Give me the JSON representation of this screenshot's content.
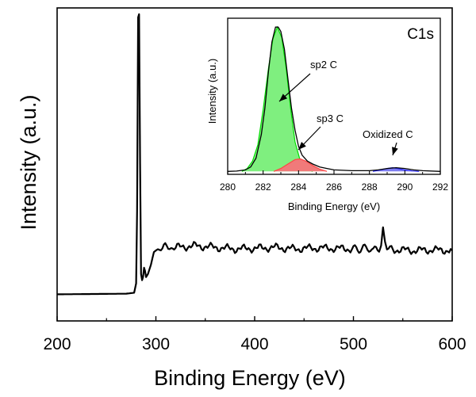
{
  "chart_data": [
    {
      "type": "line",
      "xlabel": "Binding Energy (eV)",
      "ylabel": "Intensity (a.u.)",
      "xlim": [
        200,
        600
      ],
      "xticks": [
        200,
        300,
        400,
        500,
        600
      ],
      "yticks_shown": false,
      "ylim": [
        0,
        1
      ],
      "series": [
        {
          "color": "#000000",
          "x": [
            200,
            270,
            278,
            280,
            281,
            282,
            283,
            284,
            285,
            286,
            287,
            288,
            289,
            290,
            292,
            295,
            298,
            300,
            302,
            305,
            320,
            340,
            360,
            380,
            400,
            420,
            440,
            460,
            480,
            500,
            510,
            520,
            526,
            528,
            530,
            532,
            534,
            540,
            560,
            580,
            600
          ],
          "y": [
            0.085,
            0.087,
            0.09,
            0.12,
            0.35,
            0.97,
            0.98,
            0.5,
            0.15,
            0.13,
            0.14,
            0.17,
            0.16,
            0.14,
            0.15,
            0.18,
            0.22,
            0.225,
            0.23,
            0.235,
            0.235,
            0.24,
            0.235,
            0.23,
            0.232,
            0.235,
            0.23,
            0.233,
            0.232,
            0.23,
            0.232,
            0.228,
            0.235,
            0.25,
            0.3,
            0.25,
            0.23,
            0.228,
            0.225,
            0.227,
            0.225
          ]
        }
      ]
    },
    {
      "type": "area",
      "title": "C1s",
      "xlabel": "Binding Energy (eV)",
      "ylabel": "Intensity (a.u.)",
      "xlim": [
        280,
        292
      ],
      "xticks": [
        280,
        282,
        284,
        286,
        288,
        290,
        292
      ],
      "ylim": [
        0,
        1.06
      ],
      "baseline": 0.02,
      "envelope": {
        "color": "#000000",
        "x": [
          280,
          280.5,
          281,
          281.3,
          281.6,
          281.9,
          282.1,
          282.3,
          282.5,
          282.7,
          282.85,
          283,
          283.2,
          283.4,
          283.6,
          283.8,
          284,
          284.2,
          284.5,
          284.8,
          285.2,
          285.6,
          286,
          287,
          288,
          288.5,
          289,
          289.5,
          290,
          290.5,
          291,
          292
        ],
        "y": [
          0.02,
          0.022,
          0.03,
          0.05,
          0.11,
          0.27,
          0.45,
          0.7,
          0.9,
          1.0,
          1.0,
          0.97,
          0.85,
          0.65,
          0.45,
          0.3,
          0.19,
          0.13,
          0.09,
          0.07,
          0.05,
          0.04,
          0.03,
          0.025,
          0.025,
          0.03,
          0.04,
          0.045,
          0.04,
          0.03,
          0.025,
          0.02
        ]
      },
      "components": [
        {
          "label": "sp2 C",
          "color": "#00dd00",
          "fill": "#7fef7f",
          "x": [
            280.8,
            281.1,
            281.4,
            281.7,
            282.0,
            282.3,
            282.55,
            282.8,
            283.05,
            283.3,
            283.55,
            283.8,
            284.1,
            284.4,
            284.8
          ],
          "y": [
            0.02,
            0.04,
            0.09,
            0.2,
            0.44,
            0.72,
            0.92,
            1.0,
            0.93,
            0.72,
            0.45,
            0.22,
            0.09,
            0.04,
            0.02
          ]
        },
        {
          "label": "sp3 C",
          "color": "#ff4444",
          "fill": "#f07a7a",
          "x": [
            282.6,
            283.0,
            283.4,
            283.8,
            284.1,
            284.4,
            284.8,
            285.2,
            285.6
          ],
          "y": [
            0.02,
            0.04,
            0.07,
            0.1,
            0.105,
            0.09,
            0.06,
            0.035,
            0.02
          ]
        },
        {
          "label": "Oxidized C",
          "color": "#2222ff",
          "fill": "#7d7df0",
          "x": [
            288.2,
            288.6,
            289.0,
            289.3,
            289.6,
            290.0,
            290.4,
            290.8
          ],
          "y": [
            0.02,
            0.03,
            0.04,
            0.045,
            0.04,
            0.03,
            0.023,
            0.02
          ]
        }
      ]
    }
  ]
}
